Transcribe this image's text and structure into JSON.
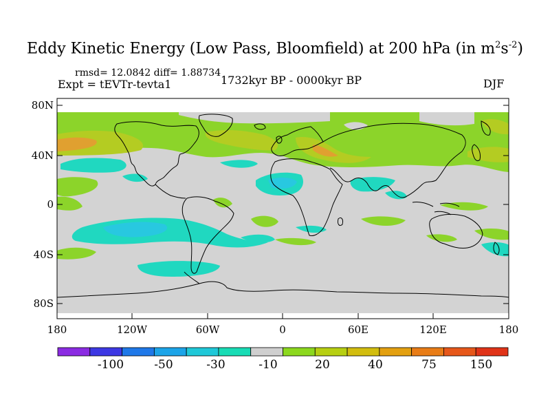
{
  "title": {
    "text": "Eddy Kinetic Energy (Low Pass, Bloomfield) at 200 hPa (in m",
    "sup1": "2",
    "mid": "s",
    "sup2": "-2",
    "end": ")"
  },
  "stats_line": "rmsd= 12.0842 diff= 1.88734",
  "expt_line": "Expt = tEVTr-tevta1",
  "period_line": "1732kyr BP - 0000kyr BP",
  "season": "DJF",
  "axes": {
    "lat_labels": [
      "80N",
      "40N",
      "0",
      "40S",
      "80S"
    ],
    "lon_labels": [
      "180",
      "120W",
      "60W",
      "0",
      "60E",
      "120E",
      "180"
    ]
  },
  "colorbar": {
    "colors": [
      "#8b2be2",
      "#3d38e3",
      "#1f78e8",
      "#1ca4e8",
      "#1fc8d8",
      "#18dcb5",
      "#cfcfcf",
      "#8cd81e",
      "#b7cf12",
      "#d2bd0e",
      "#e3a010",
      "#e87c16",
      "#e6571a",
      "#e03318"
    ],
    "labels": [
      "-100",
      "-50",
      "-30",
      "-10",
      "20",
      "40",
      "75",
      "150"
    ]
  },
  "legend_colors": {
    "neutral": "#d3d3d3",
    "green": "#8cd42a",
    "yellowgreen": "#b4cc22",
    "orange": "#e0a030",
    "teal": "#20d8c0",
    "cyan": "#28c8e0"
  }
}
